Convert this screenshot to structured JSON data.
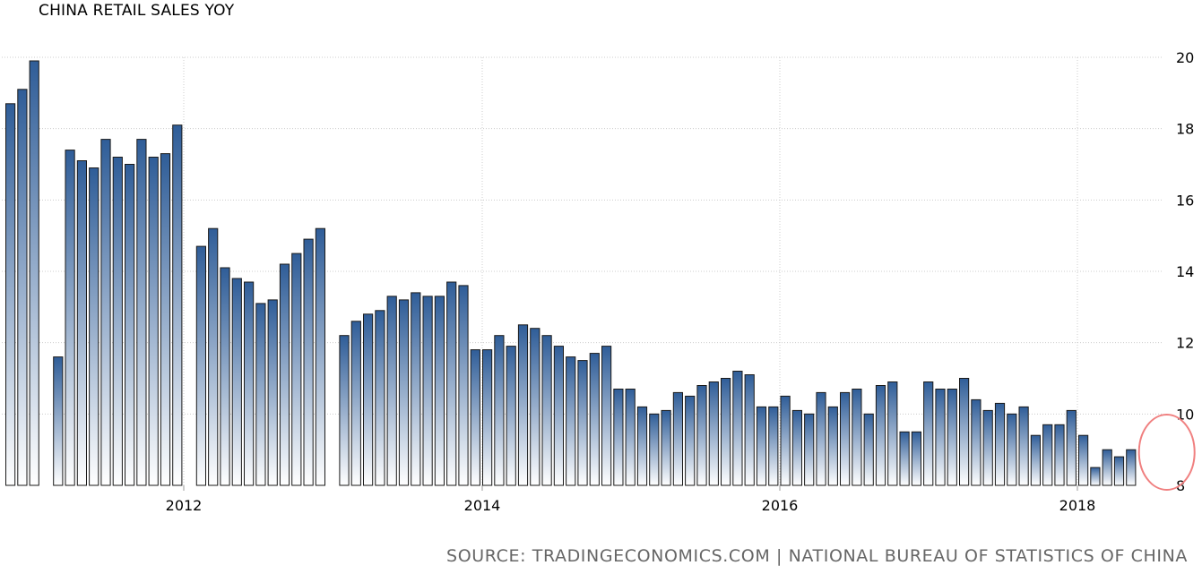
{
  "chart_data": {
    "type": "bar",
    "title": "CHINA RETAIL SALES YOY",
    "source": "SOURCE: TRADINGECONOMICS.COM | NATIONAL BUREAU OF STATISTICS OF CHINA",
    "ylim": [
      8,
      20
    ],
    "yticks": [
      20,
      18,
      16,
      14,
      12,
      10,
      8
    ],
    "xticks": [
      "2012",
      "2014",
      "2016",
      "2018"
    ],
    "grid": true,
    "y_axis_side": "right",
    "bar_color": "#2f5d98",
    "highlight_color": "#f08080",
    "series": [
      {
        "values": [
          18.7,
          19.1,
          19.9,
          null,
          11.6,
          17.4,
          17.1,
          16.9,
          17.7,
          17.2,
          17.0,
          17.7,
          17.2,
          17.3,
          18.1,
          null,
          14.7,
          15.2,
          14.1,
          13.8,
          13.7,
          13.1,
          13.2,
          14.2,
          14.5,
          14.9,
          15.2,
          null,
          12.2,
          12.6,
          12.8,
          12.9,
          13.3,
          13.2,
          13.4,
          13.3,
          13.3,
          13.7,
          13.6,
          11.8,
          11.8,
          12.2,
          11.9,
          12.5,
          12.4,
          12.2,
          11.9,
          11.6,
          11.5,
          11.7,
          11.9,
          10.7,
          10.7,
          10.2,
          10.0,
          10.1,
          10.6,
          10.5,
          10.8,
          10.9,
          11.0,
          11.2,
          11.1,
          10.2,
          10.2,
          10.5,
          10.1,
          10.0,
          10.6,
          10.2,
          10.6,
          10.7,
          10.0,
          10.8,
          10.9,
          9.5,
          9.5,
          10.9,
          10.7,
          10.7,
          11.0,
          10.4,
          10.1,
          10.3,
          10.0,
          10.2,
          9.4,
          9.7,
          9.7,
          10.1,
          9.4,
          8.5,
          9.0,
          8.8,
          9.0
        ]
      }
    ],
    "highlighted_range": [
      96,
      98
    ]
  }
}
